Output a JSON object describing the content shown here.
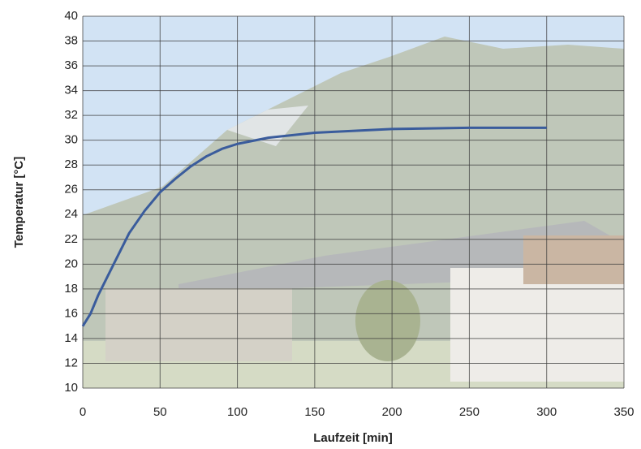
{
  "chart_data": {
    "type": "line",
    "x_label": "Laufzeit [min]",
    "y_label": "Temperatur [°C]",
    "x": [
      0,
      5,
      10,
      20,
      30,
      40,
      50,
      60,
      70,
      80,
      90,
      100,
      120,
      150,
      200,
      250,
      300
    ],
    "values": [
      15,
      16,
      17.5,
      20,
      22.5,
      24.3,
      25.8,
      26.9,
      27.9,
      28.7,
      29.3,
      29.7,
      30.2,
      30.6,
      30.9,
      31,
      31
    ],
    "color": "#3a5c9c",
    "xlim": [
      0,
      350
    ],
    "xticks": [
      0,
      50,
      100,
      150,
      200,
      250,
      300,
      350
    ],
    "ylim": [
      10,
      40
    ],
    "yticks": [
      10,
      12,
      14,
      16,
      18,
      20,
      22,
      24,
      26,
      28,
      30,
      32,
      34,
      36,
      38,
      40
    ],
    "grid": true
  }
}
